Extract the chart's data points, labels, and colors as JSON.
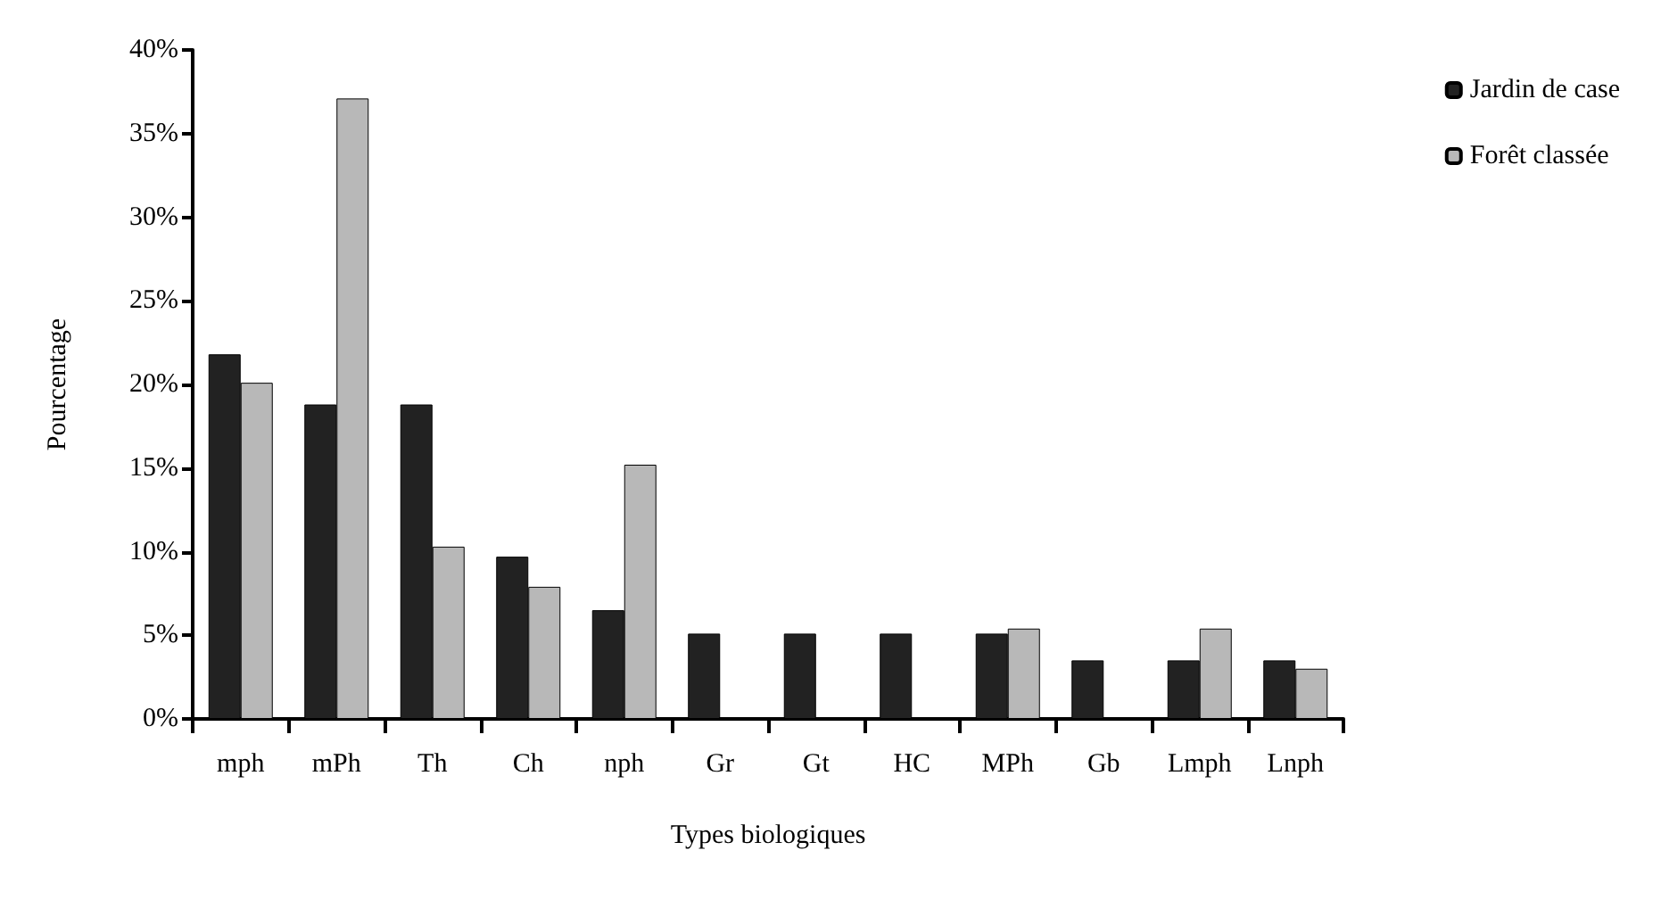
{
  "chart_data": {
    "type": "bar",
    "xlabel": "Types biologiques",
    "ylabel": "Pourcentage",
    "categories": [
      "mph",
      "mPh",
      "Th",
      "Ch",
      "nph",
      "Gr",
      "Gt",
      "HC",
      "MPh",
      "Gb",
      "Lmph",
      "Lnph"
    ],
    "series": [
      {
        "name": "Jardin de case",
        "color": "#222222",
        "values": [
          21.8,
          18.8,
          18.8,
          9.7,
          6.5,
          5.1,
          5.1,
          5.1,
          5.1,
          3.5,
          3.5,
          3.5
        ]
      },
      {
        "name": "Forêt classée",
        "color": "#b8b8b8",
        "values": [
          20.1,
          37.1,
          10.3,
          7.9,
          15.2,
          null,
          null,
          null,
          5.4,
          null,
          5.4,
          3.0
        ]
      }
    ],
    "ylim": [
      0,
      40
    ],
    "yticks": [
      {
        "value": 0,
        "label": "0%"
      },
      {
        "value": 5,
        "label": "5%"
      },
      {
        "value": 10,
        "label": "10%"
      },
      {
        "value": 15,
        "label": "15%"
      },
      {
        "value": 20,
        "label": "20%"
      },
      {
        "value": 25,
        "label": "25%"
      },
      {
        "value": 30,
        "label": "30%"
      },
      {
        "value": 35,
        "label": "35%"
      },
      {
        "value": 40,
        "label": "40%"
      }
    ],
    "grid": false,
    "legend": "top right"
  }
}
